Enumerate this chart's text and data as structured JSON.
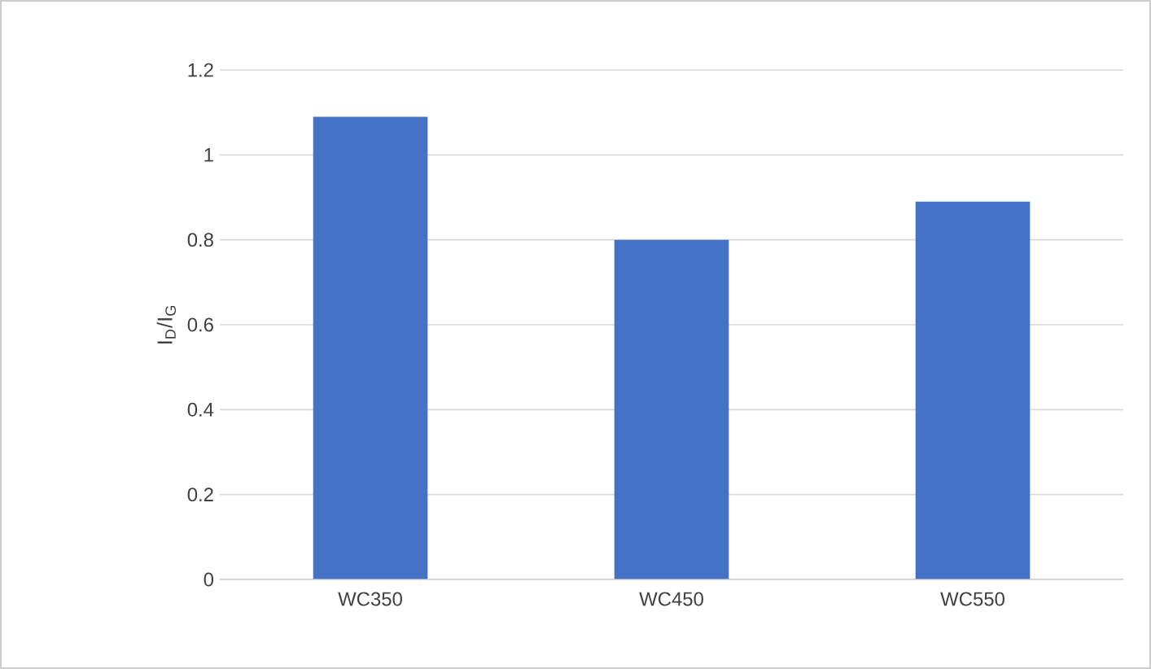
{
  "chart_data": {
    "type": "bar",
    "ylabel": "I$_{D}$/I$_{G}$",
    "categories": [
      "WC350",
      "WC450",
      "WC550"
    ],
    "values": [
      1.09,
      0.8,
      0.89
    ],
    "color": "#4472c4",
    "ylim": [
      0,
      1.2
    ],
    "yticks": [
      0,
      0.2,
      0.4,
      0.6,
      0.8,
      1,
      1.2
    ],
    "grid": "y"
  }
}
